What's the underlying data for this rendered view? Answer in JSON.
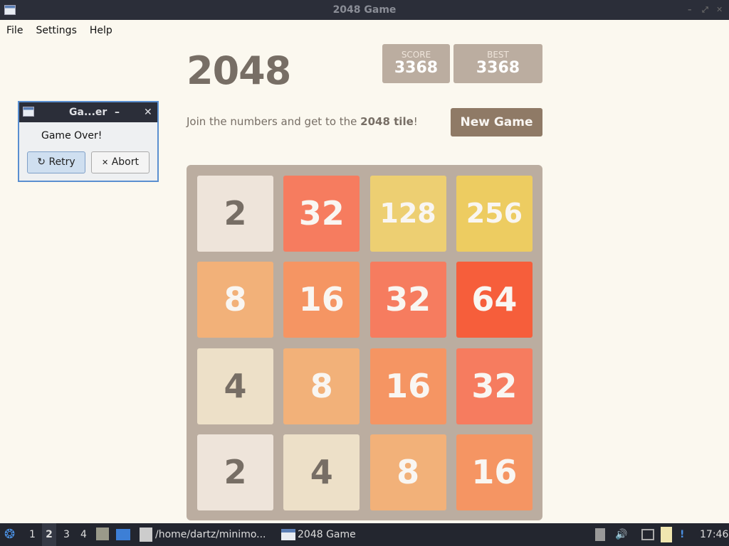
{
  "window": {
    "title": "2048 Game"
  },
  "menu": [
    "File",
    "Settings",
    "Help"
  ],
  "game": {
    "title": "2048",
    "score_label": "SCORE",
    "score": "3368",
    "best_label": "BEST",
    "best": "3368",
    "intro_prefix": "Join the numbers and get to the ",
    "intro_bold": "2048 tile",
    "intro_suffix": "!",
    "new_game": "New Game",
    "grid": [
      [
        2,
        32,
        128,
        256
      ],
      [
        8,
        16,
        32,
        64
      ],
      [
        4,
        8,
        16,
        32
      ],
      [
        2,
        4,
        8,
        16
      ]
    ],
    "tile_colors": {
      "2": "#eee4da",
      "4": "#ede0c8",
      "8": "#f2b179",
      "16": "#f59563",
      "32": "#f67c5f",
      "64": "#f65e3b",
      "128": "#edcf72",
      "256": "#edcc61"
    }
  },
  "dialog": {
    "title": "Ga...er",
    "message": "Game Over!",
    "retry": "Retry",
    "abort": "Abort"
  },
  "taskbar": {
    "workspaces": [
      "1",
      "2",
      "3",
      "4"
    ],
    "active_workspace": "2",
    "tasks": [
      "/home/dartz/minimo...",
      "2048 Game"
    ],
    "clock": "17:46"
  }
}
